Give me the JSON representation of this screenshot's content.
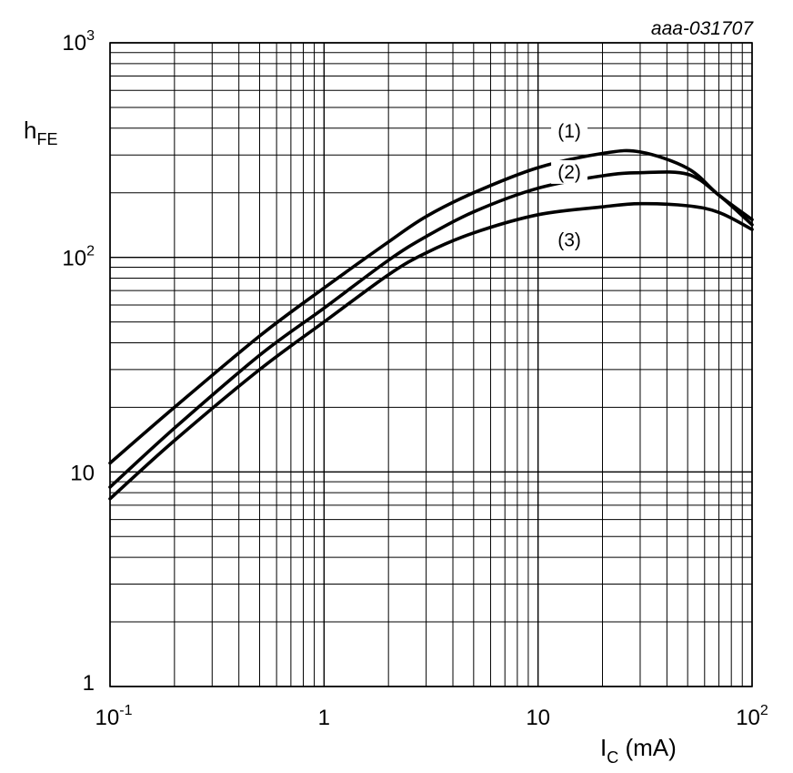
{
  "figure_id": "aaa-031707",
  "chart_data": {
    "type": "line",
    "xscale": "log",
    "yscale": "log",
    "xlim": [
      0.1,
      100
    ],
    "ylim": [
      1,
      1000
    ],
    "grid": true,
    "xlabel": {
      "main": "I",
      "sub": "C",
      "unit": " (mA)"
    },
    "ylabel": {
      "main": "h",
      "sub": "FE"
    },
    "xticks": [
      {
        "value": 0.1,
        "base": "10",
        "exp": "-1"
      },
      {
        "value": 1,
        "base": "1",
        "exp": ""
      },
      {
        "value": 10,
        "base": "10",
        "exp": ""
      },
      {
        "value": 100,
        "base": "10",
        "exp": "2"
      }
    ],
    "yticks": [
      {
        "value": 1,
        "base": "1",
        "exp": ""
      },
      {
        "value": 10,
        "base": "10",
        "exp": ""
      },
      {
        "value": 100,
        "base": "10",
        "exp": "2"
      },
      {
        "value": 1000,
        "base": "10",
        "exp": "3"
      }
    ],
    "series": [
      {
        "name": "(1)",
        "label_at": {
          "x": 14,
          "y": 370
        },
        "points": [
          [
            0.1,
            11
          ],
          [
            0.2,
            20
          ],
          [
            0.5,
            43
          ],
          [
            1,
            72
          ],
          [
            2,
            118
          ],
          [
            3,
            155
          ],
          [
            5,
            200
          ],
          [
            10,
            262
          ],
          [
            20,
            305
          ],
          [
            30,
            310
          ],
          [
            50,
            260
          ],
          [
            70,
            195
          ],
          [
            100,
            150
          ]
        ]
      },
      {
        "name": "(2)",
        "label_at": {
          "x": 14,
          "y": 238
        },
        "points": [
          [
            0.1,
            8.5
          ],
          [
            0.2,
            16
          ],
          [
            0.5,
            35
          ],
          [
            1,
            58
          ],
          [
            2,
            97
          ],
          [
            3,
            125
          ],
          [
            5,
            163
          ],
          [
            10,
            210
          ],
          [
            20,
            240
          ],
          [
            30,
            248
          ],
          [
            50,
            244
          ],
          [
            70,
            195
          ],
          [
            100,
            142
          ]
        ]
      },
      {
        "name": "(3)",
        "label_at": {
          "x": 14,
          "y": 115
        },
        "points": [
          [
            0.1,
            7.5
          ],
          [
            0.2,
            14
          ],
          [
            0.5,
            30
          ],
          [
            1,
            50
          ],
          [
            2,
            83
          ],
          [
            3,
            105
          ],
          [
            5,
            130
          ],
          [
            10,
            158
          ],
          [
            20,
            172
          ],
          [
            30,
            178
          ],
          [
            50,
            174
          ],
          [
            70,
            162
          ],
          [
            100,
            135
          ]
        ]
      }
    ]
  }
}
